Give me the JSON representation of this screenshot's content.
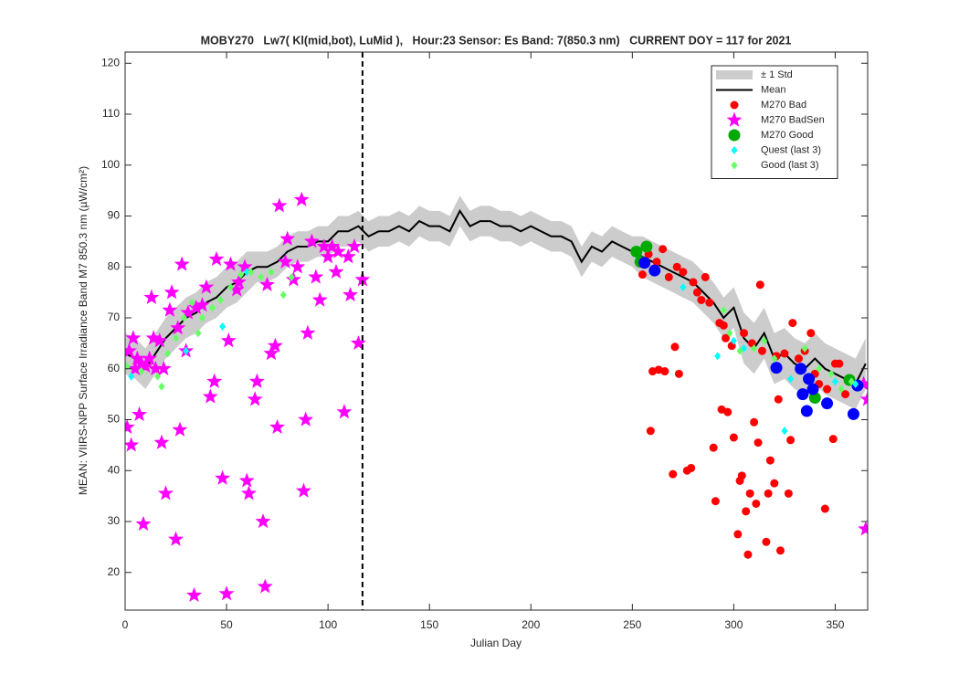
{
  "chart_data": {
    "type": "line",
    "title": "MOBY270   Lw7( Kl(mid,bot), LuMid ),   Hour:23 Sensor: Es Band: 7(850.3 nm)   CURRENT DOY = 117 for 2021",
    "x_label": "Julian Day",
    "y_label": "MEAN: VIIRS-NPP Surface Irradiance Band M7 850.3 nm (µW/cm²)",
    "xlim": [
      0,
      366
    ],
    "ylim": [
      12.6,
      122.2
    ],
    "xticks": [
      0,
      50,
      100,
      150,
      200,
      250,
      300,
      350
    ],
    "yticks": [
      20,
      30,
      40,
      50,
      60,
      70,
      80,
      90,
      100,
      110,
      120
    ],
    "vline": 117,
    "legend": "upper right",
    "x": [
      0,
      5,
      10,
      15,
      20,
      25,
      30,
      35,
      40,
      45,
      50,
      55,
      60,
      65,
      70,
      75,
      80,
      85,
      90,
      95,
      100,
      105,
      110,
      115,
      120,
      125,
      130,
      135,
      140,
      145,
      150,
      155,
      160,
      165,
      170,
      175,
      180,
      185,
      190,
      195,
      200,
      205,
      210,
      215,
      220,
      225,
      230,
      235,
      240,
      245,
      250,
      255,
      260,
      265,
      270,
      275,
      280,
      285,
      290,
      295,
      300,
      305,
      310,
      315,
      320,
      325,
      330,
      335,
      340,
      345,
      350,
      355,
      360,
      365
    ],
    "series": [
      {
        "name": "± 1 Std",
        "kind": "band",
        "color": "#cccccc",
        "upper": [
          67,
          66,
          64,
          67,
          70,
          72,
          74,
          75,
          77,
          78,
          80,
          81,
          83,
          83,
          83,
          84,
          86,
          87,
          87,
          88,
          88,
          90,
          90,
          91,
          89,
          90,
          90,
          91,
          90,
          92,
          91,
          91,
          90,
          94,
          91,
          92,
          92,
          91,
          91,
          90,
          91,
          90,
          89,
          89,
          88,
          84,
          87,
          86,
          88,
          87,
          86,
          86,
          85,
          84,
          83,
          82,
          81,
          79,
          77,
          74,
          76,
          71,
          69,
          72,
          67,
          68,
          66,
          65,
          67,
          65,
          64,
          63,
          62,
          66
        ],
        "lower": [
          59,
          58,
          56,
          59,
          62,
          64,
          66,
          67,
          69,
          70,
          72,
          73,
          75,
          77,
          77,
          78,
          80,
          81,
          81,
          82,
          82,
          84,
          84,
          85,
          83,
          84,
          84,
          85,
          84,
          86,
          85,
          85,
          84,
          88,
          85,
          86,
          86,
          85,
          85,
          84,
          85,
          84,
          83,
          83,
          82,
          78,
          81,
          80,
          82,
          81,
          80,
          78,
          77,
          76,
          75,
          74,
          73,
          71,
          69,
          66,
          68,
          61,
          59,
          62,
          57,
          58,
          56,
          55,
          57,
          55,
          54,
          53,
          52,
          56
        ]
      },
      {
        "name": "Mean",
        "kind": "line",
        "color": "#000000",
        "values": [
          63,
          62,
          60,
          63,
          66,
          68,
          70,
          71,
          73,
          74,
          76,
          77,
          79,
          80,
          80,
          81,
          83,
          84,
          84,
          85,
          85,
          87,
          87,
          88,
          86,
          87,
          87,
          88,
          87,
          89,
          88,
          88,
          87,
          91,
          88,
          89,
          89,
          88,
          88,
          87,
          88,
          87,
          86,
          86,
          85,
          81,
          84,
          83,
          85,
          84,
          83,
          82,
          81,
          80,
          79,
          78,
          77,
          75,
          73,
          70,
          72,
          66,
          64,
          67,
          62,
          63,
          61,
          60,
          62,
          60,
          59,
          58,
          57,
          61
        ]
      },
      {
        "name": "M270 Bad",
        "kind": "points",
        "marker": "circle",
        "size": 4.5,
        "color": "#ff0000",
        "x": [
          255,
          258,
          259,
          260,
          262,
          263,
          265,
          266,
          268,
          270,
          271,
          272,
          273,
          275,
          277,
          279,
          280,
          282,
          284,
          286,
          288,
          290,
          291,
          293,
          294,
          295,
          296,
          297,
          299,
          300,
          302,
          303,
          304,
          305,
          306,
          307,
          308,
          309,
          310,
          311,
          312,
          313,
          314,
          316,
          317,
          318,
          320,
          321,
          322,
          323,
          325,
          327,
          328,
          329,
          332,
          335,
          338,
          340,
          342,
          345,
          346,
          349,
          350,
          352,
          355
        ],
        "values": [
          78.5,
          82.5,
          47.8,
          59.5,
          81,
          59.8,
          83.5,
          59.5,
          78,
          39.3,
          64.3,
          80,
          59,
          79,
          40,
          40.5,
          77,
          75,
          73.5,
          78,
          73,
          44.5,
          34,
          69,
          52,
          68.5,
          66,
          51.5,
          64.5,
          46.5,
          27.5,
          38,
          39,
          67,
          32,
          23.5,
          35.5,
          65,
          49.5,
          33.5,
          45.5,
          76.5,
          63.5,
          26,
          35.5,
          42,
          37.5,
          62.5,
          54,
          24.3,
          63,
          35.5,
          46,
          69,
          62,
          63.5,
          67,
          59,
          57,
          32.5,
          56,
          46.2,
          61,
          61,
          55
        ]
      },
      {
        "name": "M270 BadSen",
        "kind": "points",
        "marker": "star",
        "size": 6,
        "color": "#ff00ff",
        "x": [
          1,
          2,
          3,
          4,
          5,
          6,
          7,
          8,
          9,
          10,
          12,
          13,
          14,
          15,
          17,
          18,
          19,
          20,
          22,
          23,
          25,
          26,
          27,
          28,
          30,
          31,
          34,
          35,
          38,
          40,
          42,
          44,
          45,
          48,
          50,
          51,
          52,
          55,
          56,
          59,
          60,
          61,
          64,
          65,
          68,
          69,
          70,
          72,
          74,
          75,
          76,
          79,
          80,
          83,
          85,
          87,
          88,
          89,
          90,
          92,
          94,
          96,
          98,
          100,
          102,
          104,
          105,
          108,
          110,
          111,
          113,
          115,
          117,
          364,
          365,
          366
        ],
        "values": [
          48.5,
          63.5,
          45,
          66,
          60,
          62,
          51,
          61,
          29.5,
          60.5,
          62,
          74,
          66,
          60,
          65.5,
          45.5,
          60,
          35.5,
          71.5,
          75,
          26.5,
          68,
          48,
          80.5,
          63.5,
          71,
          15.5,
          72,
          72.5,
          76,
          54.5,
          57.5,
          81.5,
          38.5,
          15.8,
          65.5,
          80.5,
          75.5,
          77,
          80,
          38,
          35.5,
          54,
          57.5,
          30,
          17.2,
          76.5,
          63,
          64.5,
          48.5,
          92,
          81,
          85.5,
          77.5,
          80,
          93.2,
          36,
          50,
          67,
          85,
          78,
          73.5,
          84,
          82,
          84,
          79,
          83,
          51.5,
          82,
          74.5,
          84,
          65,
          77.5,
          57,
          28.5,
          54
        ]
      },
      {
        "name": "M270 Good",
        "kind": "points",
        "marker": "circle",
        "size": 6.5,
        "color": "#00aa00",
        "x": [
          252,
          254,
          257,
          340,
          357
        ],
        "values": [
          83,
          81,
          84,
          54.3,
          57.8
        ]
      },
      {
        "kind": "points",
        "marker": "circle",
        "size": 6.5,
        "color": "#0000ff",
        "x": [
          256,
          261,
          321,
          333,
          334,
          336,
          337,
          339,
          346,
          359,
          361
        ],
        "values": [
          80.8,
          79.3,
          60.2,
          60,
          55,
          51.7,
          58,
          56,
          53.2,
          51.1,
          56.7
        ]
      },
      {
        "name": "Quest (last 3)",
        "kind": "points",
        "marker": "diamond",
        "size": 3.5,
        "color": "#00ffff",
        "x": [
          3,
          30,
          48,
          60,
          275,
          292,
          300,
          305,
          325,
          328,
          350,
          360
        ],
        "values": [
          58.5,
          63.5,
          68.3,
          79,
          76,
          62.5,
          65.5,
          64,
          47.8,
          58,
          57.5,
          57
        ]
      },
      {
        "name": "Good (last 3)",
        "kind": "points",
        "marker": "diamond",
        "size": 3.5,
        "color": "#66ff66",
        "x": [
          1,
          8,
          16,
          18,
          21,
          25,
          29,
          33,
          36,
          38,
          43,
          47,
          52,
          57,
          62,
          67,
          72,
          78,
          82,
          295,
          298,
          303,
          310,
          315,
          320,
          335,
          342,
          348,
          353,
          358
        ],
        "values": [
          60.5,
          59.5,
          58.5,
          56.5,
          63,
          66,
          70,
          73,
          67,
          70,
          72,
          73.5,
          76,
          78.5,
          79,
          78,
          79,
          74.5,
          78,
          71.5,
          67,
          63.5,
          64,
          65.5,
          62,
          64,
          60,
          59,
          56,
          57.5
        ]
      }
    ]
  }
}
